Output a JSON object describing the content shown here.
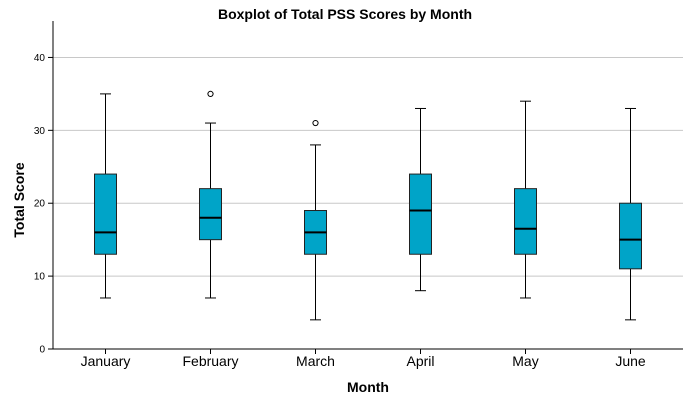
{
  "chart_data": {
    "type": "boxplot",
    "title": "Boxplot of Total PSS Scores by Month",
    "xlabel": "Month",
    "ylabel": "Total Score",
    "ylim": [
      0,
      45
    ],
    "yticks": [
      0,
      10,
      20,
      30,
      40
    ],
    "grid": "horizontal",
    "box_color": "#00a4c8",
    "categories": [
      "January",
      "February",
      "March",
      "April",
      "May",
      "June"
    ],
    "boxes": [
      {
        "min": 7,
        "q1": 13,
        "median": 16,
        "q3": 24,
        "max": 35,
        "outliers": []
      },
      {
        "min": 7,
        "q1": 15,
        "median": 18,
        "q3": 22,
        "max": 31,
        "outliers": [
          35
        ]
      },
      {
        "min": 4,
        "q1": 13,
        "median": 16,
        "q3": 19,
        "max": 28,
        "outliers": [
          31
        ]
      },
      {
        "min": 8,
        "q1": 13,
        "median": 19,
        "q3": 24,
        "max": 33,
        "outliers": []
      },
      {
        "min": 7,
        "q1": 13,
        "median": 16.5,
        "q3": 22,
        "max": 34,
        "outliers": []
      },
      {
        "min": 4,
        "q1": 11,
        "median": 15,
        "q3": 20,
        "max": 33,
        "outliers": []
      }
    ]
  }
}
